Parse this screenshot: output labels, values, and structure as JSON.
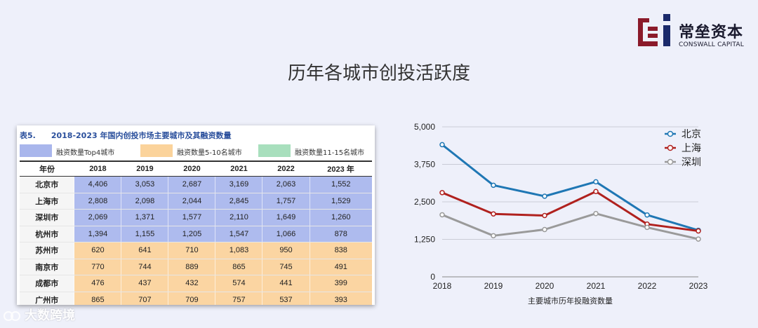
{
  "brand": {
    "name": "常垒资本",
    "sub": "CONSWALL CAPITAL",
    "colors": {
      "red": "#8b1a2a",
      "navy": "#1b2a6b"
    }
  },
  "page": {
    "title": "历年各城市创投活跃度"
  },
  "table": {
    "number": "表5.",
    "title": "2018-2023 年国内创投市场主要城市及其融资数量",
    "legend": [
      "融资数量Top4城市",
      "融资数量5-10名城市",
      "融资数量11-15名城市"
    ],
    "legend_colors": [
      "#a9b6ec",
      "#fbd39b",
      "#a8dfbd"
    ],
    "columns": [
      "年份",
      "2018",
      "2019",
      "2020",
      "2021",
      "2022",
      "2023 年"
    ],
    "rows": [
      {
        "city": "北京市",
        "group": "top",
        "values": [
          "4,406",
          "3,053",
          "2,687",
          "3,169",
          "2,063",
          "1,552"
        ]
      },
      {
        "city": "上海市",
        "group": "top",
        "values": [
          "2,808",
          "2,098",
          "2,044",
          "2,845",
          "1,757",
          "1,529"
        ]
      },
      {
        "city": "深圳市",
        "group": "top",
        "values": [
          "2,069",
          "1,371",
          "1,577",
          "2,110",
          "1,649",
          "1,260"
        ]
      },
      {
        "city": "杭州市",
        "group": "top",
        "values": [
          "1,394",
          "1,155",
          "1,205",
          "1,547",
          "1,066",
          "878"
        ]
      },
      {
        "city": "苏州市",
        "group": "mid",
        "values": [
          "620",
          "641",
          "710",
          "1,083",
          "950",
          "838"
        ]
      },
      {
        "city": "南京市",
        "group": "mid",
        "values": [
          "770",
          "744",
          "889",
          "865",
          "745",
          "491"
        ]
      },
      {
        "city": "成都市",
        "group": "mid",
        "values": [
          "476",
          "437",
          "432",
          "574",
          "441",
          "399"
        ]
      },
      {
        "city": "广州市",
        "group": "mid",
        "values": [
          "865",
          "707",
          "709",
          "757",
          "537",
          "393"
        ]
      }
    ]
  },
  "chart_data": {
    "type": "line",
    "x": [
      "2018",
      "2019",
      "2020",
      "2021",
      "2022",
      "2023"
    ],
    "series": [
      {
        "name": "北京",
        "color": "#1f77b4",
        "values": [
          4406,
          3053,
          2687,
          3169,
          2063,
          1552
        ]
      },
      {
        "name": "上海",
        "color": "#b0211e",
        "values": [
          2808,
          2098,
          2044,
          2845,
          1757,
          1529
        ]
      },
      {
        "name": "深圳",
        "color": "#9a9a9a",
        "values": [
          2069,
          1371,
          1577,
          2110,
          1649,
          1260
        ]
      }
    ],
    "yticks": [
      "0",
      "1,250",
      "2,500",
      "3,750",
      "5,000"
    ],
    "ylim": [
      0,
      5000
    ],
    "xlabel": "主要城市历年投融资数量",
    "ylabel": "",
    "grid": true,
    "legend_position": "top-right"
  },
  "watermark": {
    "text": "大数跨境"
  }
}
